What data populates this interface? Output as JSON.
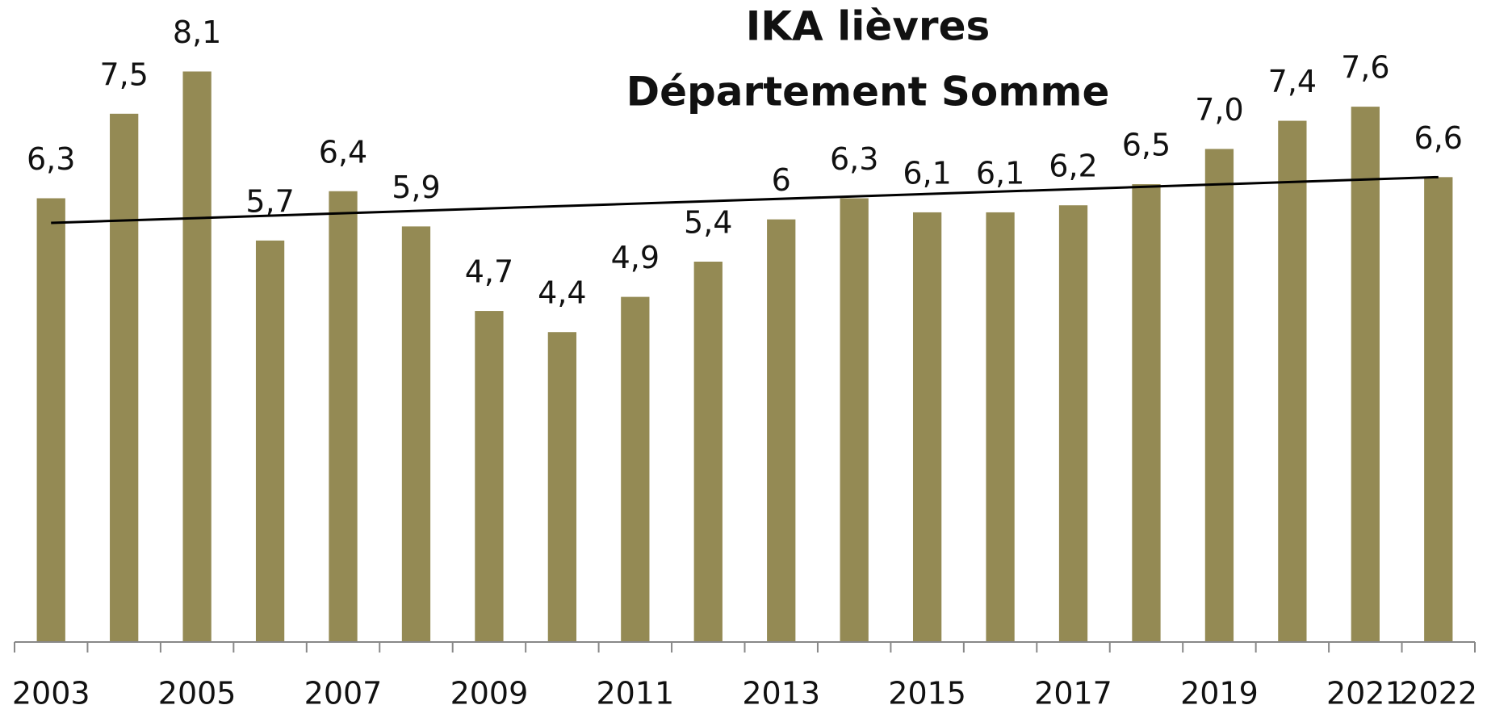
{
  "chart_data": {
    "type": "bar",
    "title": [
      "IKA lièvres",
      "Département Somme"
    ],
    "categories": [
      "2003",
      null,
      "2005",
      null,
      "2007",
      null,
      "2009",
      null,
      "2011",
      null,
      "2013",
      null,
      "2015",
      null,
      "2017",
      null,
      "2019",
      null,
      "2021",
      "2022"
    ],
    "values": [
      6.3,
      7.5,
      8.1,
      5.7,
      6.4,
      5.9,
      4.7,
      4.4,
      4.9,
      5.4,
      6,
      6.3,
      6.1,
      6.1,
      6.2,
      6.5,
      7.0,
      7.4,
      7.6,
      6.6
    ],
    "value_labels": [
      "6,3",
      "7,5",
      "8,1",
      "5,7",
      "6,4",
      "5,9",
      "4,7",
      "4,4",
      "4,9",
      "5,4",
      "6",
      "6,3",
      "6,1",
      "6,1",
      "6,2",
      "6,5",
      "7,0",
      "7,4",
      "7,6",
      "6,6"
    ],
    "color": "#948a54",
    "ylim": [
      0,
      9
    ],
    "trend": {
      "start": 5.95,
      "end": 6.6,
      "color": "#000000"
    }
  }
}
